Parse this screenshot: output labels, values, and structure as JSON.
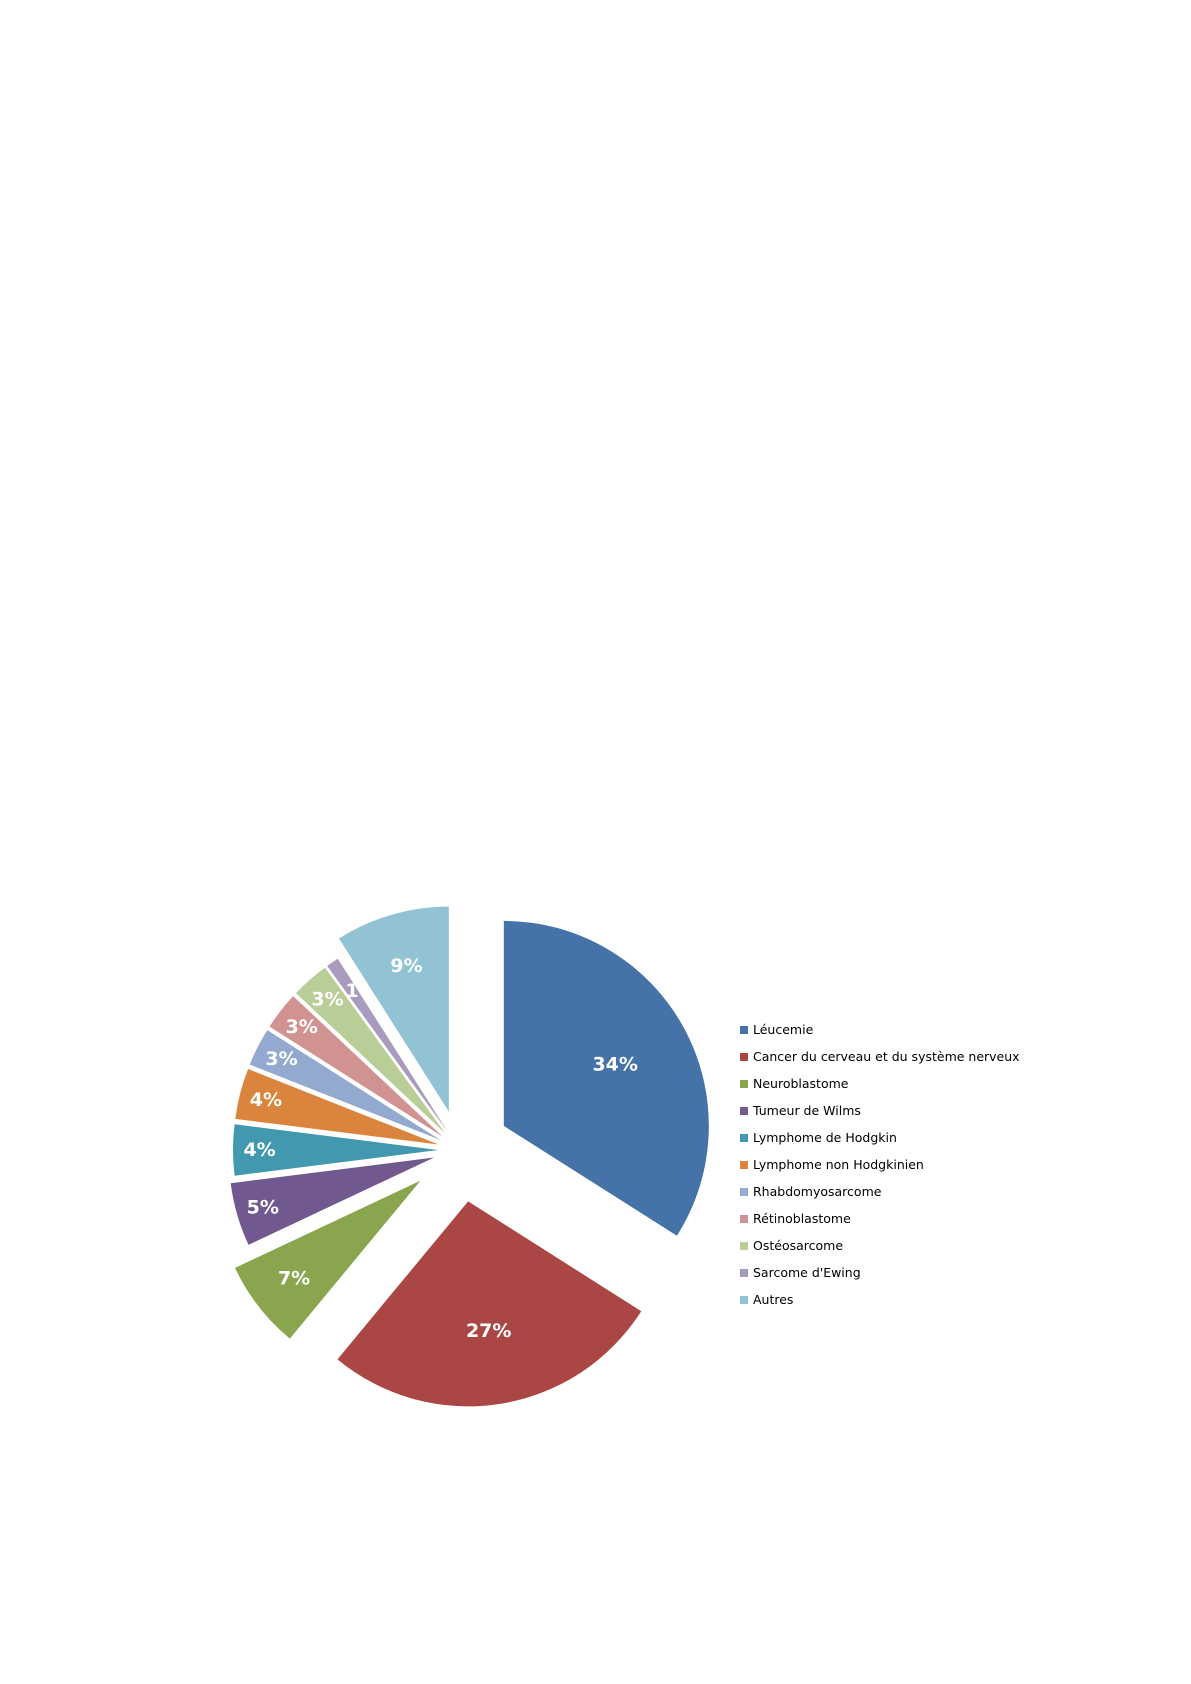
{
  "chart_data": {
    "type": "pie",
    "title": "",
    "legend_position": "right",
    "exploded": true,
    "categories": [
      "Léucemie",
      "Cancer du cerveau et du système nerveux",
      "Neuroblastome",
      "Tumeur de Wilms",
      "Lymphome de Hodgkin",
      "Lymphome non Hodgkinien",
      "Rhabdomyosarcome",
      "Rétinoblastome",
      "Ostéosarcome",
      "Sarcome d'Ewing",
      "Autres"
    ],
    "values": [
      34,
      27,
      7,
      5,
      4,
      4,
      3,
      3,
      3,
      1,
      9
    ],
    "data_labels": [
      "34%",
      "27%",
      "7%",
      "5%",
      "4%",
      "4%",
      "3%",
      "3%",
      "3%",
      "1",
      "9%"
    ],
    "colors": [
      "#4572A7",
      "#AA4643",
      "#89A54E",
      "#71588F",
      "#4198AF",
      "#DB843D",
      "#93A9CF",
      "#D19392",
      "#B9CD96",
      "#A99BBD",
      "#92C3D4"
    ]
  }
}
